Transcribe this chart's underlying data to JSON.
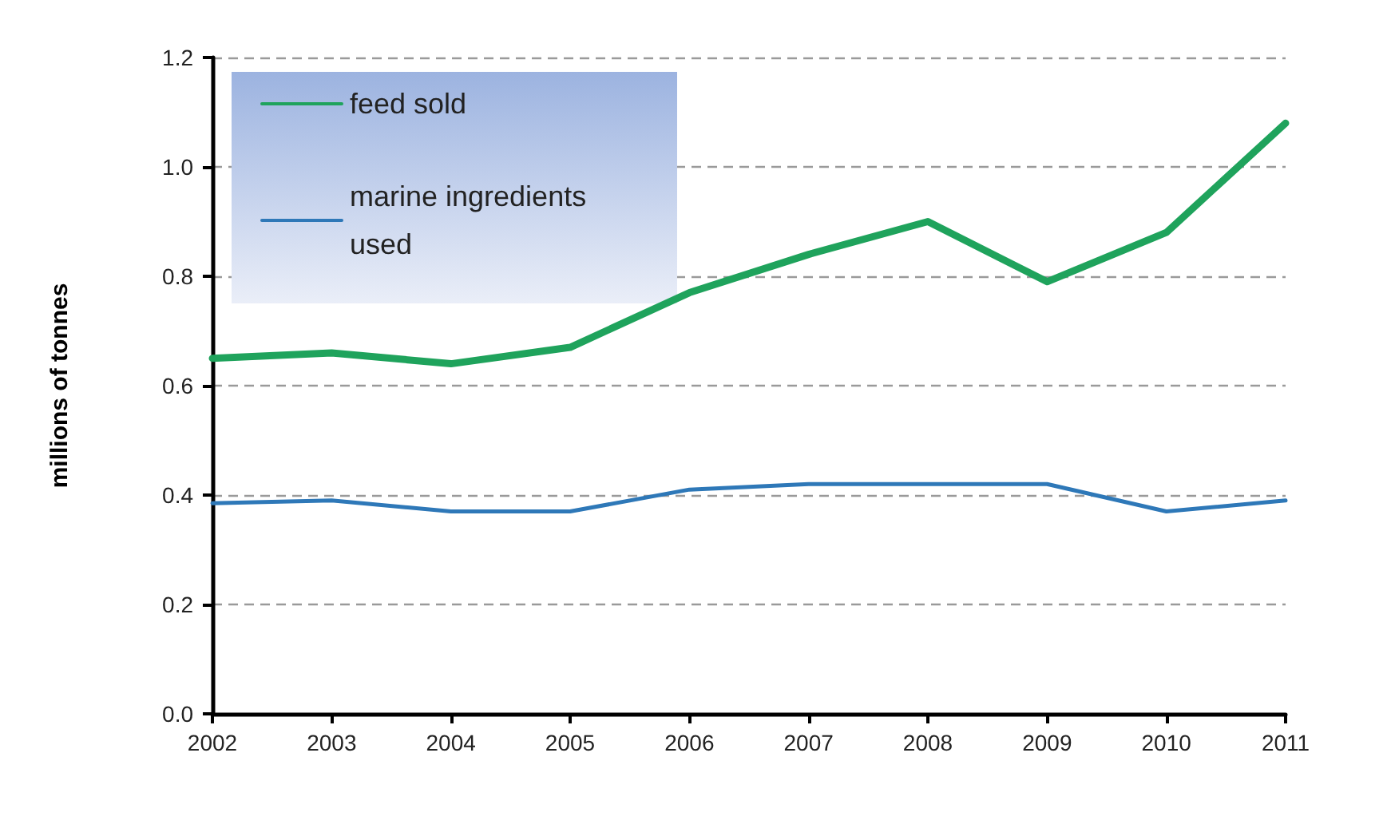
{
  "chart_data": {
    "type": "line",
    "ylabel": "millions of tonnes",
    "categories": [
      "2002",
      "2003",
      "2004",
      "2005",
      "2006",
      "2007",
      "2008",
      "2009",
      "2010",
      "2011"
    ],
    "series": [
      {
        "name": "feed sold",
        "color": "#1fa35c",
        "values": [
          0.65,
          0.66,
          0.64,
          0.67,
          0.77,
          0.84,
          0.9,
          0.79,
          0.88,
          1.08
        ]
      },
      {
        "name": "marine ingredients used",
        "color": "#2e78b8",
        "values": [
          0.385,
          0.39,
          0.37,
          0.37,
          0.41,
          0.42,
          0.42,
          0.42,
          0.37,
          0.39
        ]
      }
    ],
    "ylim": [
      0,
      1.2
    ],
    "yticks": [
      {
        "value": 0,
        "label": "0.0"
      },
      0.2,
      0.4,
      0.6,
      0.8,
      {
        "value": 1,
        "label": "1.0"
      },
      1.2
    ],
    "grid": "y",
    "legend": "top left",
    "marker": "none",
    "line_style": "solid"
  }
}
